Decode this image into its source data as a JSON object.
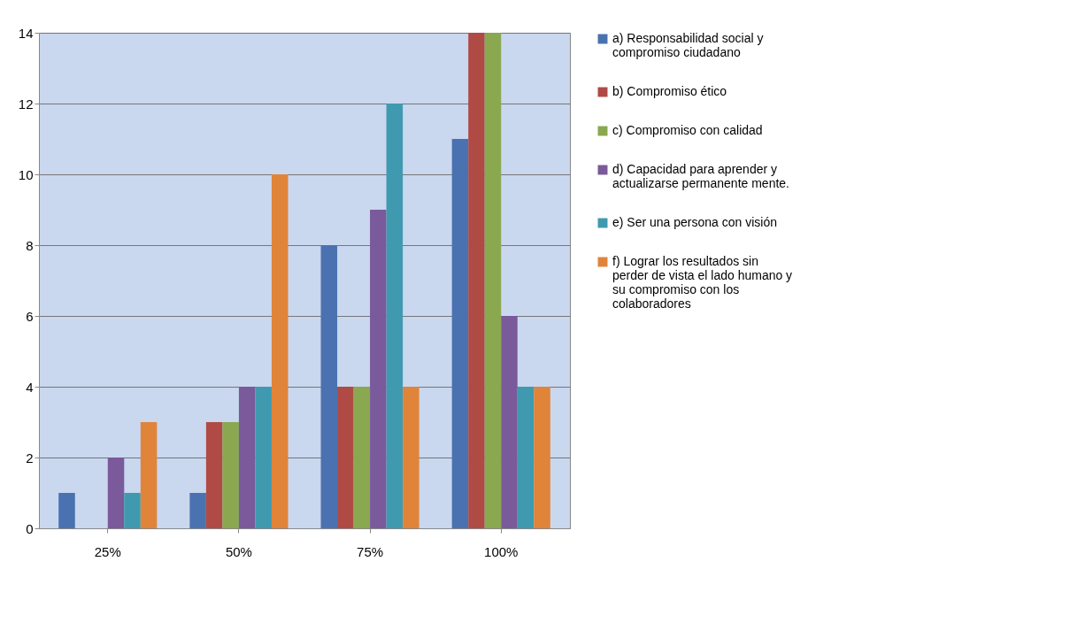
{
  "chart_data": {
    "type": "bar",
    "categories": [
      "25%",
      "50%",
      "75%",
      "100%"
    ],
    "series": [
      {
        "name": "a) Responsabilidad social y compromiso ciudadano",
        "color": "#4a72b0",
        "values": [
          1,
          1,
          8,
          11
        ]
      },
      {
        "name": "b) Compromiso ético",
        "color": "#b04a45",
        "values": [
          0,
          3,
          4,
          14
        ]
      },
      {
        "name": "c) Compromiso con calidad",
        "color": "#8aa84f",
        "values": [
          0,
          3,
          4,
          14
        ]
      },
      {
        "name": "d) Capacidad para aprender y actualizarse permanente mente.",
        "color": "#7a5a9a",
        "values": [
          2,
          4,
          9,
          6
        ]
      },
      {
        "name": "e) Ser una persona con visión",
        "color": "#3f9ab0",
        "values": [
          1,
          4,
          12,
          4
        ]
      },
      {
        "name": "f) Lograr los resultados sin perder de vista el lado humano y su compromiso con los colaboradores",
        "color": "#e0843a",
        "values": [
          3,
          10,
          4,
          4
        ]
      }
    ],
    "ylim": [
      0,
      14
    ],
    "yticks": [
      0,
      2,
      4,
      6,
      8,
      10,
      12,
      14
    ],
    "grid": "y",
    "legend": "right"
  }
}
